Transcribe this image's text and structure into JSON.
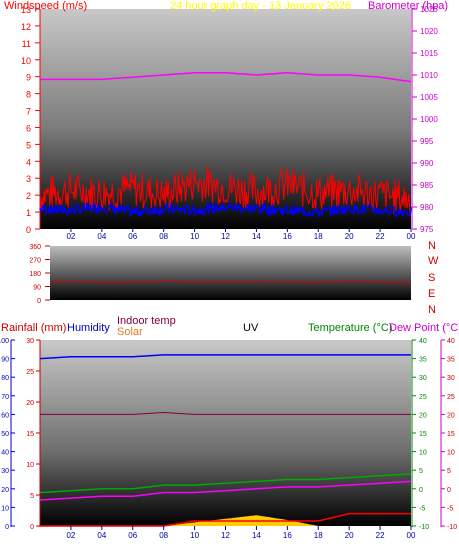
{
  "header": {
    "left_label": "Windspeed (m/s)",
    "title": "24 hour graph day - 13 January 2026",
    "right_label": "Barometer (hpa)"
  },
  "hours": [
    "02",
    "04",
    "06",
    "08",
    "10",
    "12",
    "14",
    "16",
    "18",
    "20",
    "22",
    "00"
  ],
  "dir_labels": [
    "N",
    "W",
    "S",
    "E",
    "N"
  ],
  "bottom_labels": {
    "rainfall": "Rainfall (mm)",
    "humidity": "Humidity",
    "indoor": "Indoor temp",
    "solar": "Solar",
    "uv": "UV",
    "temperature": "Temperature (°C)",
    "dewpoint": "Dew Point (°C)"
  },
  "colors": {
    "wind_avg": "#0000ff",
    "wind_gust": "#ff0000",
    "barometer": "#ff00ff",
    "direction": "#cc0000",
    "humidity": "#0000ff",
    "indoor": "#800040",
    "solar": "#ffcc00",
    "temperature": "#00aa00",
    "dewpoint": "#ff00ff",
    "rain": "#ff0000",
    "outdoor_orange": "#e07820"
  },
  "chart_data": [
    {
      "type": "line",
      "ylim_left": [
        0,
        13
      ],
      "ylim_right": [
        975,
        1025
      ],
      "left_ticks": [
        0,
        1,
        2,
        3,
        4,
        5,
        6,
        7,
        8,
        9,
        10,
        11,
        12,
        13
      ],
      "right_ticks": [
        975,
        980,
        985,
        990,
        995,
        1000,
        1005,
        1010,
        1015,
        1020,
        1025
      ],
      "x_hours": [
        0,
        2,
        4,
        6,
        8,
        10,
        12,
        14,
        16,
        18,
        20,
        22,
        24
      ],
      "series": [
        {
          "name": "Windspeed (m/s)",
          "axis": "left",
          "values": [
            1.2,
            1.1,
            1.3,
            1.0,
            1.2,
            1.1,
            1.3,
            1.2,
            1.1,
            1.0,
            1.2,
            1.1,
            1.0
          ]
        },
        {
          "name": "Windspeed (m/s)",
          "axis": "left",
          "values": [
            2.0,
            2.3,
            2.1,
            2.4,
            2.0,
            2.8,
            2.5,
            2.2,
            2.6,
            2.1,
            2.3,
            2.0,
            1.8
          ]
        },
        {
          "name": "Barometer (hpa)",
          "axis": "right",
          "values": [
            1009,
            1009,
            1009,
            1009.5,
            1010,
            1010.5,
            1010.5,
            1010,
            1010.5,
            1010,
            1010,
            1009.5,
            1008.5
          ]
        }
      ]
    },
    {
      "type": "line",
      "ylim": [
        0,
        360
      ],
      "ticks": [
        0,
        90,
        180,
        270,
        360
      ],
      "x_hours": [
        0,
        2,
        4,
        6,
        8,
        10,
        12,
        14,
        16,
        18,
        20,
        22,
        24
      ],
      "series": [
        {
          "name": "Direction",
          "values": [
            120,
            122,
            118,
            121,
            123,
            120,
            119,
            122,
            121,
            118,
            123,
            120,
            119
          ]
        }
      ]
    },
    {
      "type": "line",
      "ylim_rain": [
        0,
        30
      ],
      "ylim_humidity": [
        0,
        100
      ],
      "ylim_temp": [
        -10,
        40
      ],
      "rain_ticks": [
        0,
        5,
        10,
        15,
        20,
        25,
        30
      ],
      "humidity_ticks": [
        0,
        10,
        20,
        30,
        40,
        50,
        60,
        70,
        80,
        90,
        100
      ],
      "temp_ticks": [
        -10,
        -5,
        0,
        5,
        10,
        15,
        20,
        25,
        30,
        35,
        40
      ],
      "x_hours": [
        0,
        2,
        4,
        6,
        8,
        10,
        12,
        14,
        16,
        18,
        20,
        22,
        24
      ],
      "series": [
        {
          "name": "Humidity",
          "values": [
            90,
            91,
            91,
            91,
            92,
            92,
            92,
            92,
            92,
            92,
            92,
            92,
            92
          ]
        },
        {
          "name": "Indoor temp",
          "values": [
            20,
            20,
            20,
            20,
            20.5,
            20,
            20,
            20,
            20,
            20,
            20,
            20,
            20
          ]
        },
        {
          "name": "Temperature (°C)",
          "values": [
            -1,
            -0.5,
            0,
            0,
            1,
            1,
            1.5,
            2,
            2.5,
            2.5,
            3,
            3.5,
            4
          ]
        },
        {
          "name": "Dew Point (°C)",
          "values": [
            -3,
            -2.5,
            -2,
            -2,
            -1,
            -1,
            -0.5,
            0,
            0.5,
            0.5,
            1,
            1.5,
            2
          ]
        },
        {
          "name": "Solar",
          "values": [
            0,
            0,
            0,
            0,
            0,
            0.3,
            0.6,
            0.9,
            0.5,
            0,
            0,
            0,
            0
          ]
        },
        {
          "name": "Rainfall (mm)",
          "values": [
            0,
            0,
            0,
            0,
            0,
            0.8,
            0.8,
            0.8,
            0.8,
            0.8,
            2,
            2,
            2
          ]
        }
      ]
    }
  ]
}
